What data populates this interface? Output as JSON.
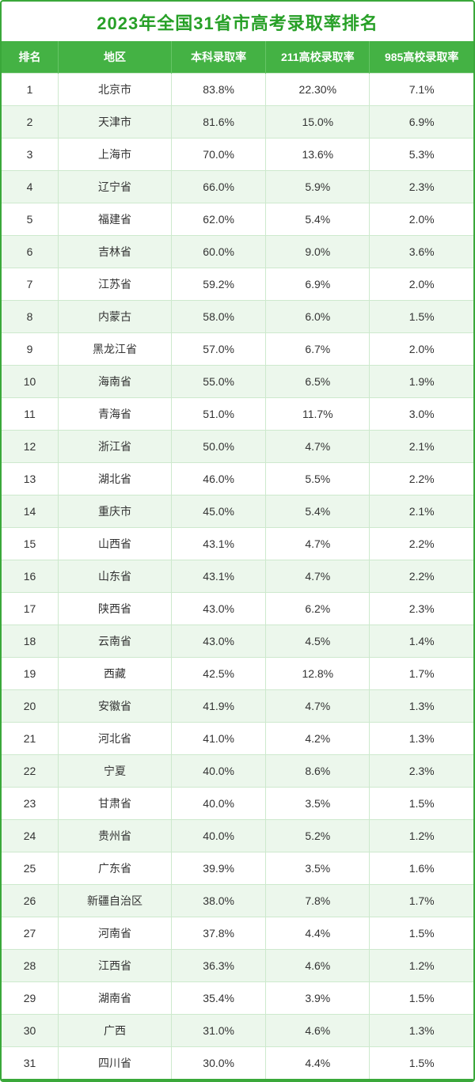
{
  "title": "2023年全国31省市高考录取率排名",
  "columns": [
    "排名",
    "地区",
    "本科录取率",
    "211高校录取率",
    "985高校录取率"
  ],
  "rows": [
    [
      "1",
      "北京市",
      "83.8%",
      "22.30%",
      "7.1%"
    ],
    [
      "2",
      "天津市",
      "81.6%",
      "15.0%",
      "6.9%"
    ],
    [
      "3",
      "上海市",
      "70.0%",
      "13.6%",
      "5.3%"
    ],
    [
      "4",
      "辽宁省",
      "66.0%",
      "5.9%",
      "2.3%"
    ],
    [
      "5",
      "福建省",
      "62.0%",
      "5.4%",
      "2.0%"
    ],
    [
      "6",
      "吉林省",
      "60.0%",
      "9.0%",
      "3.6%"
    ],
    [
      "7",
      "江苏省",
      "59.2%",
      "6.9%",
      "2.0%"
    ],
    [
      "8",
      "内蒙古",
      "58.0%",
      "6.0%",
      "1.5%"
    ],
    [
      "9",
      "黑龙江省",
      "57.0%",
      "6.7%",
      "2.0%"
    ],
    [
      "10",
      "海南省",
      "55.0%",
      "6.5%",
      "1.9%"
    ],
    [
      "11",
      "青海省",
      "51.0%",
      "11.7%",
      "3.0%"
    ],
    [
      "12",
      "浙江省",
      "50.0%",
      "4.7%",
      "2.1%"
    ],
    [
      "13",
      "湖北省",
      "46.0%",
      "5.5%",
      "2.2%"
    ],
    [
      "14",
      "重庆市",
      "45.0%",
      "5.4%",
      "2.1%"
    ],
    [
      "15",
      "山西省",
      "43.1%",
      "4.7%",
      "2.2%"
    ],
    [
      "16",
      "山东省",
      "43.1%",
      "4.7%",
      "2.2%"
    ],
    [
      "17",
      "陕西省",
      "43.0%",
      "6.2%",
      "2.3%"
    ],
    [
      "18",
      "云南省",
      "43.0%",
      "4.5%",
      "1.4%"
    ],
    [
      "19",
      "西藏",
      "42.5%",
      "12.8%",
      "1.7%"
    ],
    [
      "20",
      "安徽省",
      "41.9%",
      "4.7%",
      "1.3%"
    ],
    [
      "21",
      "河北省",
      "41.0%",
      "4.2%",
      "1.3%"
    ],
    [
      "22",
      "宁夏",
      "40.0%",
      "8.6%",
      "2.3%"
    ],
    [
      "23",
      "甘肃省",
      "40.0%",
      "3.5%",
      "1.5%"
    ],
    [
      "24",
      "贵州省",
      "40.0%",
      "5.2%",
      "1.2%"
    ],
    [
      "25",
      "广东省",
      "39.9%",
      "3.5%",
      "1.6%"
    ],
    [
      "26",
      "新疆自治区",
      "38.0%",
      "7.8%",
      "1.7%"
    ],
    [
      "27",
      "河南省",
      "37.8%",
      "4.4%",
      "1.5%"
    ],
    [
      "28",
      "江西省",
      "36.3%",
      "4.6%",
      "1.2%"
    ],
    [
      "29",
      "湖南省",
      "35.4%",
      "3.9%",
      "1.5%"
    ],
    [
      "30",
      "广西",
      "31.0%",
      "4.6%",
      "1.3%"
    ],
    [
      "31",
      "四川省",
      "30.0%",
      "4.4%",
      "1.5%"
    ]
  ],
  "style": {
    "type": "table",
    "title_color": "#27a027",
    "title_fontsize": 22,
    "header_bg": "#44b244",
    "header_text_color": "#ffffff",
    "header_fontsize": 14,
    "row_odd_bg": "#ffffff",
    "row_even_bg": "#ecf7ec",
    "cell_border_color": "#cde9cd",
    "outer_border_color": "#3aa83a",
    "cell_text_color": "#333333",
    "cell_fontsize": 14,
    "column_widths_pct": [
      12,
      24,
      20,
      22,
      22
    ]
  }
}
